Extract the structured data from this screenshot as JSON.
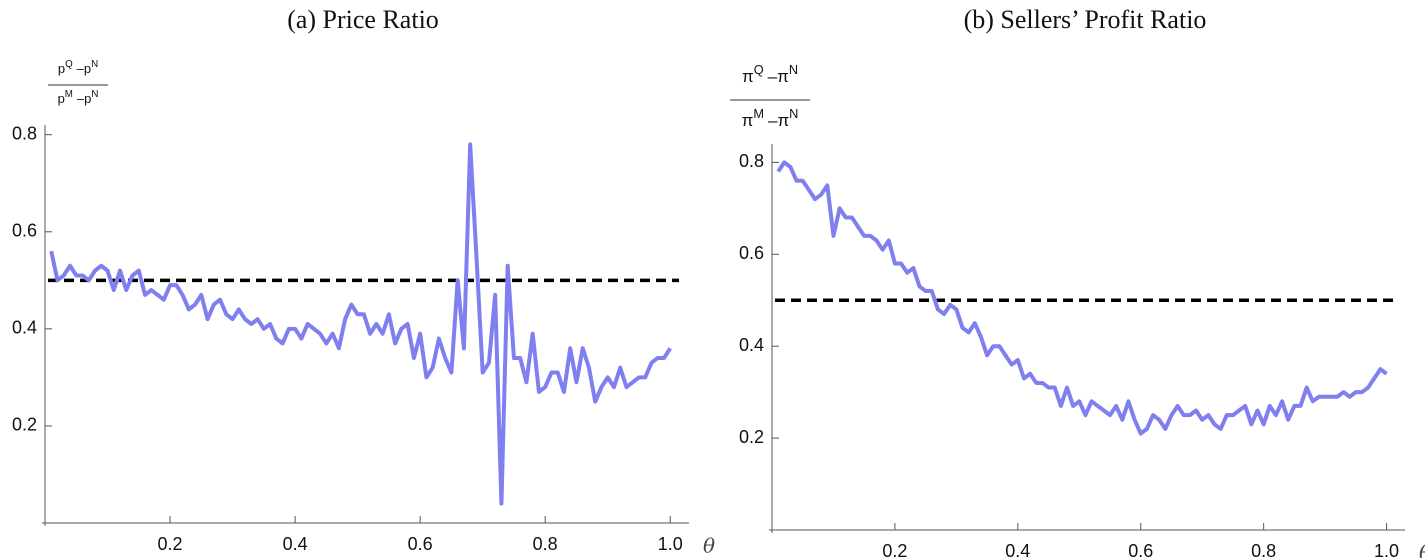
{
  "chart_data": [
    {
      "type": "line",
      "title": "(a) Price Ratio",
      "ylabel": {
        "numerator": {
          "left": {
            "base": "p",
            "sup": "Q"
          },
          "operator": "–",
          "right": {
            "base": "p",
            "sup": "N"
          }
        },
        "denominator": {
          "left": {
            "base": "p",
            "sup": "M"
          },
          "operator": "–",
          "right": {
            "base": "p",
            "sup": "N"
          }
        }
      },
      "xlabel": "θ",
      "x": [
        0.01,
        0.02,
        0.03,
        0.04,
        0.05,
        0.06,
        0.07,
        0.08,
        0.09,
        0.1,
        0.11,
        0.12,
        0.13,
        0.14,
        0.15,
        0.16,
        0.17,
        0.18,
        0.19,
        0.2,
        0.21,
        0.22,
        0.23,
        0.24,
        0.25,
        0.26,
        0.27,
        0.28,
        0.29,
        0.3,
        0.31,
        0.32,
        0.33,
        0.34,
        0.35,
        0.36,
        0.37,
        0.38,
        0.39,
        0.4,
        0.41,
        0.42,
        0.43,
        0.44,
        0.45,
        0.46,
        0.47,
        0.48,
        0.49,
        0.5,
        0.51,
        0.52,
        0.53,
        0.54,
        0.55,
        0.56,
        0.57,
        0.58,
        0.59,
        0.6,
        0.61,
        0.62,
        0.63,
        0.64,
        0.65,
        0.66,
        0.67,
        0.68,
        0.69,
        0.7,
        0.71,
        0.72,
        0.73,
        0.74,
        0.75,
        0.76,
        0.77,
        0.78,
        0.79,
        0.8,
        0.81,
        0.82,
        0.83,
        0.84,
        0.85,
        0.86,
        0.87,
        0.88,
        0.89,
        0.9,
        0.91,
        0.92,
        0.93,
        0.94,
        0.95,
        0.96,
        0.97,
        0.98,
        0.99,
        1.0
      ],
      "values": [
        0.56,
        0.5,
        0.51,
        0.53,
        0.51,
        0.51,
        0.5,
        0.52,
        0.53,
        0.52,
        0.48,
        0.52,
        0.48,
        0.51,
        0.52,
        0.47,
        0.48,
        0.47,
        0.46,
        0.49,
        0.49,
        0.47,
        0.44,
        0.45,
        0.47,
        0.42,
        0.45,
        0.46,
        0.43,
        0.42,
        0.44,
        0.42,
        0.41,
        0.42,
        0.4,
        0.41,
        0.38,
        0.37,
        0.4,
        0.4,
        0.38,
        0.41,
        0.4,
        0.39,
        0.37,
        0.39,
        0.36,
        0.42,
        0.45,
        0.43,
        0.43,
        0.39,
        0.41,
        0.39,
        0.43,
        0.37,
        0.4,
        0.41,
        0.34,
        0.39,
        0.3,
        0.32,
        0.38,
        0.34,
        0.31,
        0.5,
        0.36,
        0.78,
        0.55,
        0.31,
        0.33,
        0.47,
        0.04,
        0.53,
        0.34,
        0.34,
        0.29,
        0.39,
        0.27,
        0.28,
        0.31,
        0.31,
        0.27,
        0.36,
        0.29,
        0.36,
        0.32,
        0.25,
        0.28,
        0.3,
        0.28,
        0.32,
        0.28,
        0.29,
        0.3,
        0.3,
        0.33,
        0.34,
        0.34,
        0.36
      ],
      "color": "#7f7ff0",
      "reference_line": {
        "value": 0.5,
        "color": "#000000",
        "style": "dashed"
      },
      "xlim": [
        0,
        1.03
      ],
      "ylim": [
        0,
        0.82
      ],
      "xticks": [
        0.2,
        0.4,
        0.6,
        0.8,
        {
          "value": 1,
          "label": "1.0"
        }
      ],
      "yticks": [
        0.2,
        0.4,
        0.6,
        0.8
      ]
    },
    {
      "type": "line",
      "title": "(b) Sellers’ Profit Ratio",
      "ylabel": {
        "numerator": {
          "left": {
            "base": "π",
            "sup": "Q"
          },
          "operator": "–",
          "right": {
            "base": "π",
            "sup": "N"
          }
        },
        "denominator": {
          "left": {
            "base": "π",
            "sup": "M"
          },
          "operator": "–",
          "right": {
            "base": "π",
            "sup": "N"
          }
        }
      },
      "xlabel": "θ",
      "x": [
        0.01,
        0.02,
        0.03,
        0.04,
        0.05,
        0.06,
        0.07,
        0.08,
        0.09,
        0.1,
        0.11,
        0.12,
        0.13,
        0.14,
        0.15,
        0.16,
        0.17,
        0.18,
        0.19,
        0.2,
        0.21,
        0.22,
        0.23,
        0.24,
        0.25,
        0.26,
        0.27,
        0.28,
        0.29,
        0.3,
        0.31,
        0.32,
        0.33,
        0.34,
        0.35,
        0.36,
        0.37,
        0.38,
        0.39,
        0.4,
        0.41,
        0.42,
        0.43,
        0.44,
        0.45,
        0.46,
        0.47,
        0.48,
        0.49,
        0.5,
        0.51,
        0.52,
        0.53,
        0.54,
        0.55,
        0.56,
        0.57,
        0.58,
        0.59,
        0.6,
        0.61,
        0.62,
        0.63,
        0.64,
        0.65,
        0.66,
        0.67,
        0.68,
        0.69,
        0.7,
        0.71,
        0.72,
        0.73,
        0.74,
        0.75,
        0.76,
        0.77,
        0.78,
        0.79,
        0.8,
        0.81,
        0.82,
        0.83,
        0.84,
        0.85,
        0.86,
        0.87,
        0.88,
        0.89,
        0.9,
        0.91,
        0.92,
        0.93,
        0.94,
        0.95,
        0.96,
        0.97,
        0.98,
        0.99,
        1.0
      ],
      "values": [
        0.78,
        0.8,
        0.79,
        0.76,
        0.76,
        0.74,
        0.72,
        0.73,
        0.75,
        0.64,
        0.7,
        0.68,
        0.68,
        0.66,
        0.64,
        0.64,
        0.63,
        0.61,
        0.63,
        0.58,
        0.58,
        0.56,
        0.57,
        0.53,
        0.52,
        0.52,
        0.48,
        0.47,
        0.49,
        0.48,
        0.44,
        0.43,
        0.45,
        0.42,
        0.38,
        0.4,
        0.4,
        0.38,
        0.36,
        0.37,
        0.33,
        0.34,
        0.32,
        0.32,
        0.31,
        0.31,
        0.27,
        0.31,
        0.27,
        0.28,
        0.25,
        0.28,
        0.27,
        0.26,
        0.25,
        0.27,
        0.24,
        0.28,
        0.24,
        0.21,
        0.22,
        0.25,
        0.24,
        0.22,
        0.25,
        0.27,
        0.25,
        0.25,
        0.26,
        0.24,
        0.25,
        0.23,
        0.22,
        0.25,
        0.25,
        0.26,
        0.27,
        0.23,
        0.26,
        0.23,
        0.27,
        0.25,
        0.28,
        0.24,
        0.27,
        0.27,
        0.31,
        0.28,
        0.29,
        0.29,
        0.29,
        0.29,
        0.3,
        0.29,
        0.3,
        0.3,
        0.31,
        0.33,
        0.35,
        0.34
      ],
      "color": "#7f7ff0",
      "reference_line": {
        "value": 0.5,
        "color": "#000000",
        "style": "dashed"
      },
      "xlim": [
        0,
        1.03
      ],
      "ylim": [
        0,
        0.84
      ],
      "xticks": [
        0.2,
        0.4,
        0.6,
        0.8,
        {
          "value": 1,
          "label": "1.0"
        }
      ],
      "yticks": [
        0.2,
        0.4,
        0.6,
        0.8
      ]
    }
  ]
}
